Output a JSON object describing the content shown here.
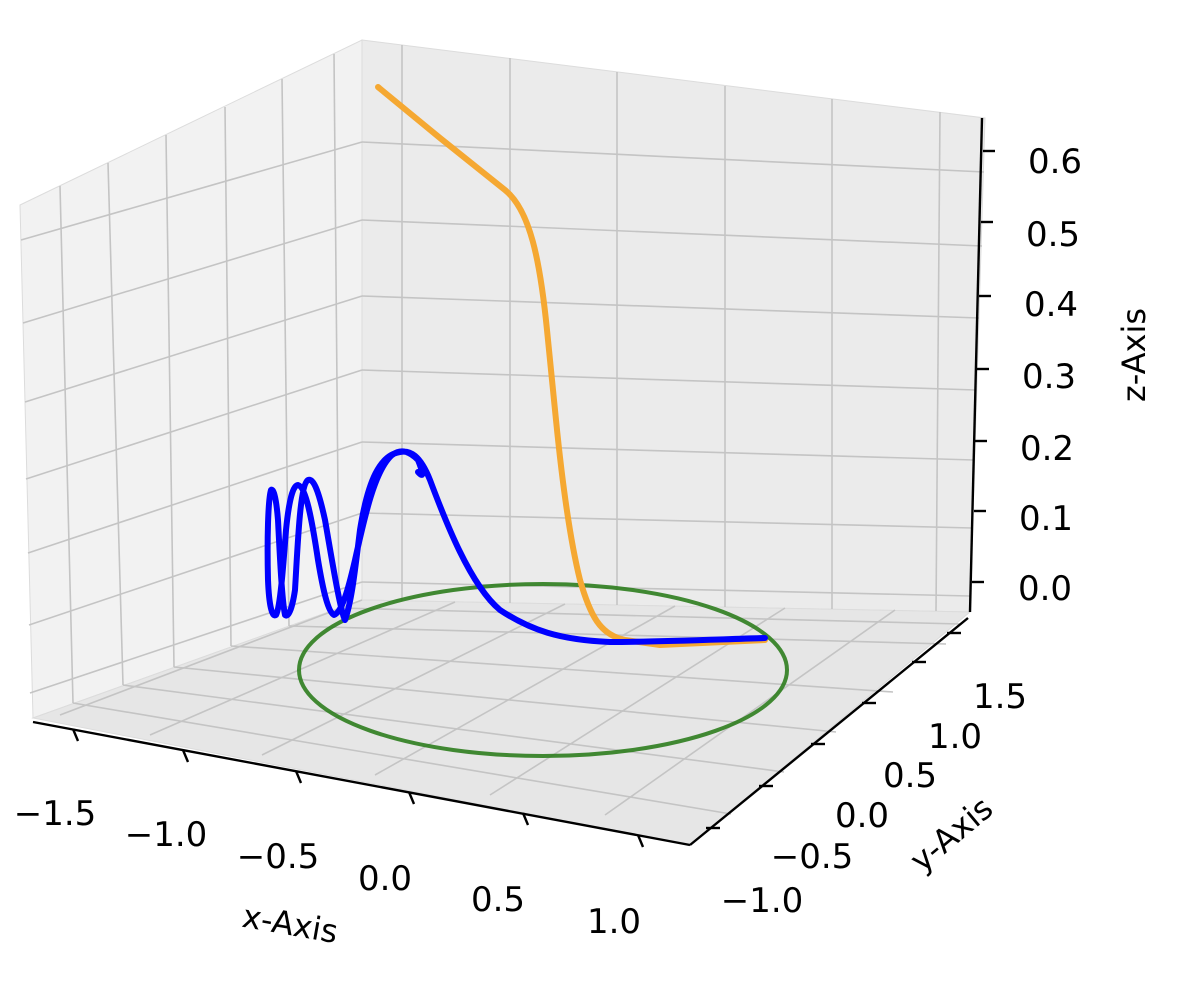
{
  "chart_data": {
    "type": "line",
    "projection": "3d",
    "grid": true,
    "xlabel": "x-Axis",
    "ylabel": "y-Axis",
    "zlabel": "z-Axis",
    "xlim": [
      -1.75,
      1.25
    ],
    "ylim": [
      -1.0,
      1.75
    ],
    "zlim": [
      -0.05,
      0.65
    ],
    "x_ticks": [
      "−1.5",
      "−1.0",
      "−0.5",
      "0.0",
      "0.5",
      "1.0"
    ],
    "y_ticks": [
      "−1.0",
      "−0.5",
      "0.0",
      "0.5",
      "1.0",
      "1.5"
    ],
    "z_ticks": [
      "0.0",
      "0.1",
      "0.2",
      "0.3",
      "0.4",
      "0.5",
      "0.6"
    ],
    "series": [
      {
        "color": "#2e7d1e",
        "kind": "circle in z=0 plane",
        "center": [
          0,
          0,
          0
        ],
        "radius": 1.0
      },
      {
        "color": "#0000ff",
        "kind": "damped oscillating curve along x",
        "points": [
          [
            1.0,
            0.0,
            0.0
          ],
          [
            0.6,
            0.12,
            0.01
          ],
          [
            0.2,
            0.3,
            0.05
          ],
          [
            -0.1,
            0.45,
            0.12
          ],
          [
            -0.3,
            0.52,
            0.2
          ],
          [
            -0.5,
            0.58,
            0.13
          ],
          [
            -0.7,
            0.64,
            0.0
          ],
          [
            -0.85,
            0.68,
            0.18
          ],
          [
            -1.0,
            0.72,
            0.0
          ],
          [
            -1.1,
            0.75,
            0.19
          ],
          [
            -1.2,
            0.77,
            0.0
          ],
          [
            -1.3,
            0.79,
            0.18
          ],
          [
            -1.35,
            0.8,
            0.0
          ]
        ]
      },
      {
        "color": "#f5a832",
        "kind": "rising trajectory",
        "points": [
          [
            1.0,
            0.0,
            0.0
          ],
          [
            0.3,
            0.05,
            0.01
          ],
          [
            0.1,
            0.1,
            0.05
          ],
          [
            0.0,
            0.15,
            0.2
          ],
          [
            -0.05,
            0.2,
            0.38
          ],
          [
            -0.1,
            0.3,
            0.5
          ],
          [
            -0.3,
            0.6,
            0.56
          ],
          [
            -0.6,
            1.2,
            0.62
          ]
        ]
      }
    ]
  }
}
